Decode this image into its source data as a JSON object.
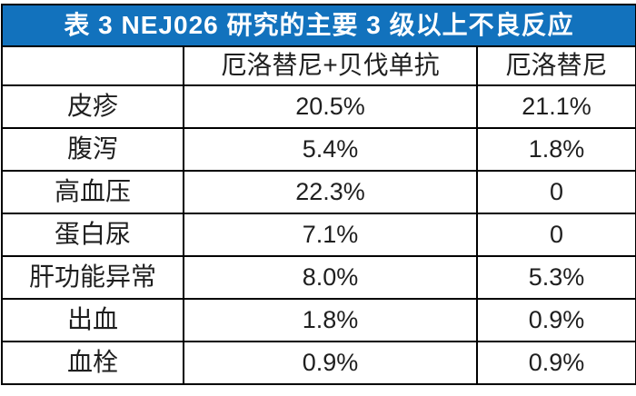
{
  "colors": {
    "title_bg": "#1272bd",
    "title_text": "#ffffff",
    "border": "#000000",
    "cell_text": "#1f1f1f"
  },
  "table": {
    "title": "表 3 NEJ026 研究的主要 3 级以上不良反应",
    "columns": [
      "",
      "厄洛替尼+贝伐单抗",
      "厄洛替尼"
    ],
    "rows": [
      {
        "label": "皮疹",
        "combo": "20.5%",
        "mono": "21.1%"
      },
      {
        "label": "腹泻",
        "combo": "5.4%",
        "mono": "1.8%"
      },
      {
        "label": "高血压",
        "combo": "22.3%",
        "mono": "0"
      },
      {
        "label": "蛋白尿",
        "combo": "7.1%",
        "mono": "0"
      },
      {
        "label": "肝功能异常",
        "combo": "8.0%",
        "mono": "5.3%"
      },
      {
        "label": "出血",
        "combo": "1.8%",
        "mono": "0.9%"
      },
      {
        "label": "血栓",
        "combo": "0.9%",
        "mono": "0.9%"
      }
    ]
  }
}
